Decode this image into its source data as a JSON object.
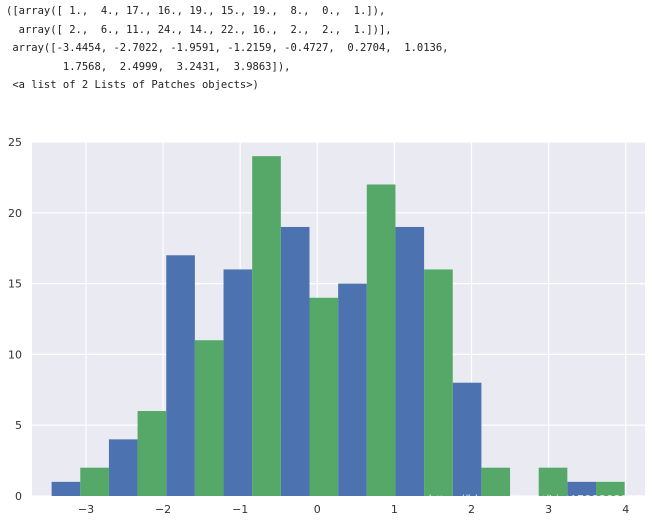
{
  "console": {
    "lines": [
      "([array([ 1.,  4., 17., 16., 19., 15., 19.,  8.,  0.,  1.]),",
      "  array([ 2.,  6., 11., 24., 14., 22., 16.,  2.,  2.,  1.])],",
      " array([-3.4454, -2.7022, -1.9591, -1.2159, -0.4727,  0.2704,  1.0136,",
      "         1.7568,  2.4999,  3.2431,  3.9863]),",
      " <a list of 2 Lists of Patches objects>)"
    ]
  },
  "watermark": "https://blog.csdn.net/Li_t1522362212",
  "chart_data": {
    "type": "bar",
    "title": "",
    "xlabel": "",
    "ylabel": "",
    "bin_edges": [
      -3.4454,
      -2.7022,
      -1.9591,
      -1.2159,
      -0.4727,
      0.2704,
      1.0136,
      1.7568,
      2.4999,
      3.2431,
      3.9863
    ],
    "series": [
      {
        "values": [
          1,
          4,
          17,
          16,
          19,
          15,
          19,
          8,
          0,
          1
        ],
        "color": "#4c72b0"
      },
      {
        "values": [
          2,
          6,
          11,
          24,
          14,
          22,
          16,
          2,
          2,
          1
        ],
        "color": "#55a868"
      }
    ],
    "xlim": [
      -3.7,
      4.25
    ],
    "ylim": [
      0,
      25
    ],
    "xticks": [
      -3,
      -2,
      -1,
      0,
      1,
      2,
      3,
      4
    ],
    "xtick_labels": [
      "−3",
      "−2",
      "−1",
      "0",
      "1",
      "2",
      "3",
      "4"
    ],
    "yticks": [
      0,
      5,
      10,
      15,
      20,
      25
    ],
    "ytick_labels": [
      "0",
      "5",
      "10",
      "15",
      "20",
      "25"
    ],
    "grid": true,
    "style": "seaborn-darkgrid",
    "background_color": "#eaeaf2",
    "grid_color": "#ffffff"
  }
}
